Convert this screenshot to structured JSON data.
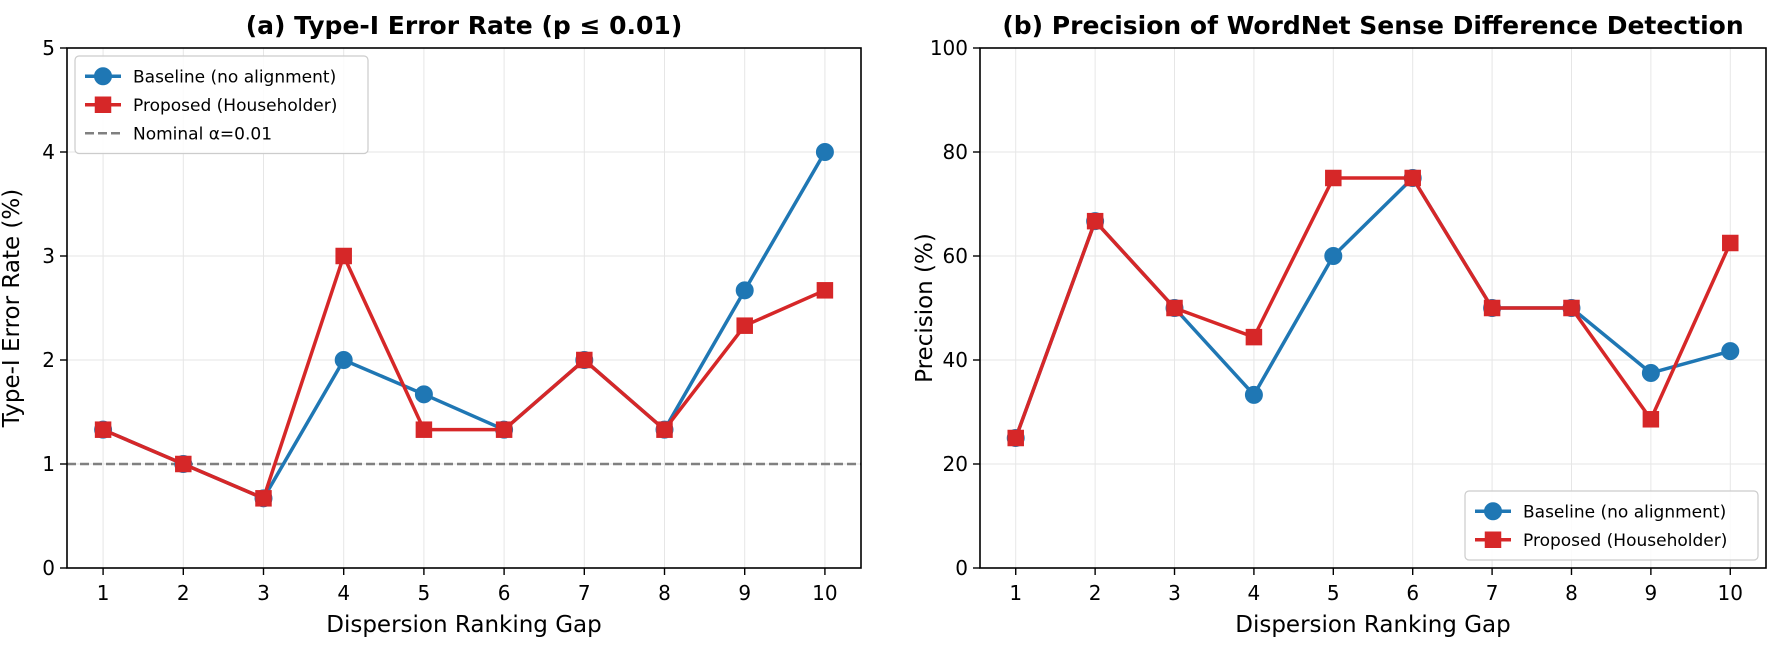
{
  "chart_data": [
    {
      "type": "line",
      "title": "(a) Type-I Error Rate (p ≤ 0.01)",
      "xlabel": "Dispersion Ranking Gap",
      "ylabel": "Type-I Error Rate (%)",
      "x": [
        1,
        2,
        3,
        4,
        5,
        6,
        7,
        8,
        9,
        10
      ],
      "xlim": [
        0.55,
        10.45
      ],
      "ylim": [
        0,
        5
      ],
      "yticks": [
        0,
        1,
        2,
        3,
        4,
        5
      ],
      "grid": true,
      "legend_position": "top-left",
      "series": [
        {
          "name": "Baseline (no alignment)",
          "color": "#1f77b4",
          "marker": "circle",
          "values": [
            1.33,
            1.0,
            0.67,
            2.0,
            1.67,
            1.33,
            2.0,
            1.33,
            2.67,
            4.0
          ]
        },
        {
          "name": "Proposed (Householder)",
          "color": "#d62728",
          "marker": "square",
          "values": [
            1.33,
            1.0,
            0.67,
            3.0,
            1.33,
            1.33,
            2.0,
            1.33,
            2.33,
            2.67
          ]
        }
      ],
      "reference_line": {
        "name": "Nominal α=0.01",
        "y": 1.0,
        "color": "#808080",
        "style": "dashed"
      }
    },
    {
      "type": "line",
      "title": "(b) Precision of WordNet Sense Difference Detection",
      "xlabel": "Dispersion Ranking Gap",
      "ylabel": "Precision (%)",
      "x": [
        1,
        2,
        3,
        4,
        5,
        6,
        7,
        8,
        9,
        10
      ],
      "xlim": [
        0.55,
        10.45
      ],
      "ylim": [
        0,
        100
      ],
      "yticks": [
        0,
        20,
        40,
        60,
        80,
        100
      ],
      "grid": true,
      "legend_position": "bottom-right",
      "series": [
        {
          "name": "Baseline (no alignment)",
          "color": "#1f77b4",
          "marker": "circle",
          "values": [
            25.0,
            66.7,
            50.0,
            33.3,
            60.0,
            75.0,
            50.0,
            50.0,
            37.5,
            41.7
          ]
        },
        {
          "name": "Proposed (Householder)",
          "color": "#d62728",
          "marker": "square",
          "values": [
            25.0,
            66.7,
            50.0,
            44.4,
            75.0,
            75.0,
            50.0,
            50.0,
            28.6,
            62.5
          ]
        }
      ]
    }
  ]
}
